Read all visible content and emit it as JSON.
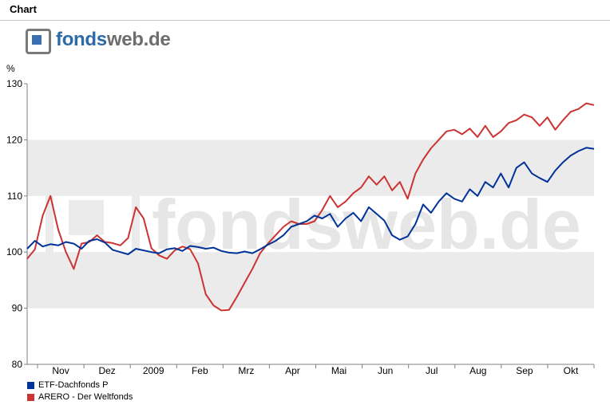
{
  "header": {
    "title": "Chart"
  },
  "logo": {
    "part1": "fonds",
    "part2": "web.de"
  },
  "watermark": "fondsweb.de",
  "chart_data": {
    "type": "line",
    "title": "",
    "xlabel": "",
    "ylabel": "%",
    "ylim": [
      80,
      130
    ],
    "yticks": [
      "80",
      "90",
      "100",
      "110",
      "120",
      "130"
    ],
    "x_tick_labels": [
      "Nov",
      "Dez",
      "2009",
      "Feb",
      "Mrz",
      "Apr",
      "Mai",
      "Jun",
      "Jul",
      "Aug",
      "Sep",
      "Okt"
    ],
    "x_range_days": [
      0,
      365
    ],
    "grid": "alternating horizontal bands",
    "legend": "bottom-left",
    "series": [
      {
        "name": "ETF-Dachfonds P",
        "color": "#003399",
        "x": [
          0,
          5,
          10,
          15,
          20,
          25,
          30,
          35,
          40,
          45,
          50,
          55,
          60,
          65,
          70,
          75,
          80,
          85,
          90,
          95,
          100,
          105,
          110,
          115,
          120,
          125,
          130,
          135,
          140,
          145,
          150,
          155,
          160,
          165,
          170,
          175,
          180,
          185,
          190,
          195,
          200,
          205,
          210,
          215,
          220,
          225,
          230,
          235,
          240,
          245,
          250,
          255,
          260,
          265,
          270,
          275,
          280,
          285,
          290,
          295,
          300,
          305,
          310,
          315,
          320,
          325,
          330,
          335,
          340,
          345,
          350,
          355,
          360,
          365
        ],
        "values": [
          100.6,
          102.0,
          101.0,
          101.4,
          101.2,
          101.8,
          101.5,
          100.6,
          102.0,
          102.3,
          101.7,
          100.4,
          100.0,
          99.6,
          100.6,
          100.3,
          100.0,
          99.8,
          100.5,
          100.7,
          100.2,
          101.1,
          100.9,
          100.6,
          100.8,
          100.2,
          99.9,
          99.8,
          100.1,
          99.8,
          100.5,
          101.3,
          102.0,
          103.0,
          104.5,
          105.0,
          105.5,
          106.5,
          106.0,
          106.8,
          104.5,
          106.0,
          107.0,
          105.5,
          108.0,
          106.8,
          105.6,
          103.0,
          102.2,
          102.8,
          105.0,
          108.5,
          107.0,
          109.0,
          110.5,
          109.5,
          109.0,
          111.2,
          110.0,
          112.5,
          111.5,
          114.0,
          111.5,
          115.0,
          116.0,
          114.0,
          113.2,
          112.5,
          114.5,
          116.0,
          117.2,
          118.0,
          118.6,
          118.4
        ]
      },
      {
        "name": "ARERO - Der Weltfonds",
        "color": "#cc3333",
        "x": [
          0,
          5,
          10,
          15,
          20,
          25,
          30,
          35,
          40,
          45,
          50,
          55,
          60,
          65,
          70,
          75,
          80,
          85,
          90,
          95,
          100,
          105,
          110,
          115,
          120,
          125,
          130,
          135,
          140,
          145,
          150,
          155,
          160,
          165,
          170,
          175,
          180,
          185,
          190,
          195,
          200,
          205,
          210,
          215,
          220,
          225,
          230,
          235,
          240,
          245,
          250,
          255,
          260,
          265,
          270,
          275,
          280,
          285,
          290,
          295,
          300,
          305,
          310,
          315,
          320,
          325,
          330,
          335,
          340,
          345,
          350,
          355,
          360,
          365
        ],
        "values": [
          98.8,
          100.5,
          106.5,
          110.0,
          104.0,
          100.0,
          97.0,
          101.5,
          101.8,
          103.0,
          101.8,
          101.6,
          101.2,
          102.5,
          108.0,
          106.0,
          100.7,
          99.4,
          98.8,
          100.3,
          101.0,
          100.5,
          98.0,
          92.5,
          90.5,
          89.6,
          89.7,
          92.0,
          94.5,
          97.0,
          99.8,
          101.5,
          103.0,
          104.5,
          105.5,
          105.0,
          105.0,
          105.5,
          107.5,
          110.0,
          108.0,
          109.0,
          110.5,
          111.5,
          113.5,
          112.0,
          113.5,
          111.0,
          112.5,
          109.5,
          114.0,
          116.5,
          118.5,
          120.0,
          121.5,
          121.8,
          121.0,
          122.0,
          120.5,
          122.5,
          120.5,
          121.5,
          123.0,
          123.5,
          124.5,
          124.0,
          122.5,
          124.0,
          121.8,
          123.5,
          125.0,
          125.5,
          126.5,
          126.2
        ]
      }
    ]
  }
}
